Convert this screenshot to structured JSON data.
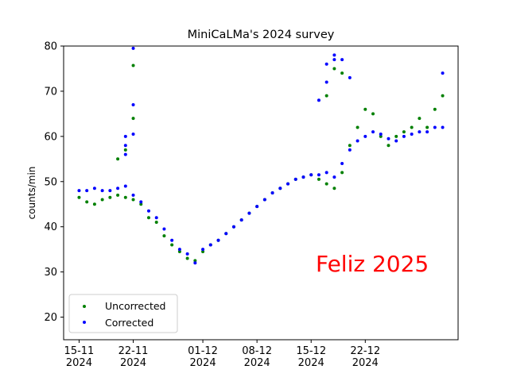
{
  "chart_data": {
    "type": "scatter",
    "title": "MiniCaLMa's 2024 survey",
    "xlabel": "",
    "ylabel": "counts/min",
    "ylim": [
      15,
      80
    ],
    "yticks": [
      "20",
      "30",
      "40",
      "50",
      "60",
      "70",
      "80"
    ],
    "xlim": [
      "2024-11-13",
      "2025-01-03"
    ],
    "xticks": [
      {
        "date": "2024-11-15",
        "line1": "15-11",
        "line2": "2024"
      },
      {
        "date": "2024-11-22",
        "line1": "22-11",
        "line2": "2024"
      },
      {
        "date": "2024-12-01",
        "line1": "01-12",
        "line2": "2024"
      },
      {
        "date": "2024-12-08",
        "line1": "08-12",
        "line2": "2024"
      },
      {
        "date": "2024-12-15",
        "line1": "15-12",
        "line2": "2024"
      },
      {
        "date": "2024-12-22",
        "line1": "22-12",
        "line2": "2024"
      }
    ],
    "grid": false,
    "legend_position": "lower-left",
    "annotation": {
      "text": "Feliz 2025",
      "color": "#ff0000"
    },
    "series": [
      {
        "name": "Uncorrected",
        "color": "#008000",
        "x": [
          "2024-11-15",
          "2024-11-16",
          "2024-11-17",
          "2024-11-18",
          "2024-11-19",
          "2024-11-20",
          "2024-11-21",
          "2024-11-22",
          "2024-11-23",
          "2024-11-24",
          "2024-11-25",
          "2024-11-26",
          "2024-11-27",
          "2024-11-28",
          "2024-11-29",
          "2024-11-30",
          "2024-12-01",
          "2024-12-02",
          "2024-12-03",
          "2024-12-04",
          "2024-12-05",
          "2024-12-06",
          "2024-12-07",
          "2024-12-08",
          "2024-12-09",
          "2024-12-10",
          "2024-12-11",
          "2024-12-12",
          "2024-12-13",
          "2024-12-14",
          "2024-12-15",
          "2024-12-16",
          "2024-12-17",
          "2024-12-18",
          "2024-12-19",
          "2024-12-20",
          "2024-12-21",
          "2024-12-22",
          "2024-12-23",
          "2024-12-24",
          "2024-12-25",
          "2024-12-26",
          "2024-12-27",
          "2024-12-28",
          "2024-12-29",
          "2024-12-30",
          "2024-12-31",
          "2025-01-01"
        ],
        "y": [
          46.5,
          45.5,
          45,
          46,
          46.5,
          47,
          46.5,
          46,
          45,
          42,
          41,
          38,
          36,
          34.5,
          33,
          32.5,
          34.5,
          36,
          37,
          38.5,
          40,
          41.5,
          43,
          44.5,
          46,
          47.5,
          48.5,
          49.5,
          50.5,
          51,
          51.5,
          50.5,
          49.5,
          48.5,
          52,
          58,
          62,
          66,
          65,
          60,
          58,
          60,
          61,
          62,
          64,
          62,
          66,
          69
        ]
      },
      {
        "name": "Corrected",
        "color": "#0000ff",
        "x": [
          "2024-11-15",
          "2024-11-16",
          "2024-11-17",
          "2024-11-18",
          "2024-11-19",
          "2024-11-20",
          "2024-11-21",
          "2024-11-22",
          "2024-11-23",
          "2024-11-24",
          "2024-11-25",
          "2024-11-26",
          "2024-11-27",
          "2024-11-28",
          "2024-11-29",
          "2024-11-30",
          "2024-12-01",
          "2024-12-02",
          "2024-12-03",
          "2024-12-04",
          "2024-12-05",
          "2024-12-06",
          "2024-12-07",
          "2024-12-08",
          "2024-12-09",
          "2024-12-10",
          "2024-12-11",
          "2024-12-12",
          "2024-12-13",
          "2024-12-14",
          "2024-12-15",
          "2024-12-16",
          "2024-12-17",
          "2024-12-18",
          "2024-12-19",
          "2024-12-20",
          "2024-12-21",
          "2024-12-22",
          "2024-12-23",
          "2024-12-24",
          "2024-12-25",
          "2024-12-26",
          "2024-12-27",
          "2024-12-28",
          "2024-12-29",
          "2024-12-30",
          "2024-12-31",
          "2025-01-01"
        ],
        "y": [
          48,
          48,
          48.5,
          48,
          48,
          48.5,
          49,
          47,
          45.5,
          43.5,
          42,
          39.5,
          37,
          35,
          34,
          32,
          35,
          36,
          37,
          38.5,
          40,
          41.5,
          43,
          44.5,
          46,
          47.5,
          48.5,
          49.5,
          50.5,
          51,
          51.5,
          51.5,
          52,
          51,
          54,
          57,
          59,
          60,
          61,
          60.5,
          59.5,
          59,
          60,
          60.5,
          61,
          61,
          62,
          62
        ]
      },
      {
        "name": "",
        "color": "#0000ff",
        "x": [
          "2024-11-21",
          "2024-11-21",
          "2024-11-21",
          "2024-11-22",
          "2024-11-22",
          "2024-11-22",
          "2024-12-16",
          "2024-12-17",
          "2024-12-17",
          "2024-12-18",
          "2024-12-18",
          "2024-12-19",
          "2024-12-20",
          "2025-01-01"
        ],
        "y": [
          56,
          58,
          60,
          60.5,
          67,
          79.5,
          68,
          72,
          76,
          77,
          78,
          77,
          73,
          74
        ]
      },
      {
        "name": "",
        "color": "#008000",
        "x": [
          "2024-11-20",
          "2024-11-21",
          "2024-11-22",
          "2024-11-22",
          "2024-12-17",
          "2024-12-18",
          "2024-12-19"
        ],
        "y": [
          55,
          57,
          64,
          75.7,
          69,
          75,
          74
        ]
      }
    ]
  }
}
